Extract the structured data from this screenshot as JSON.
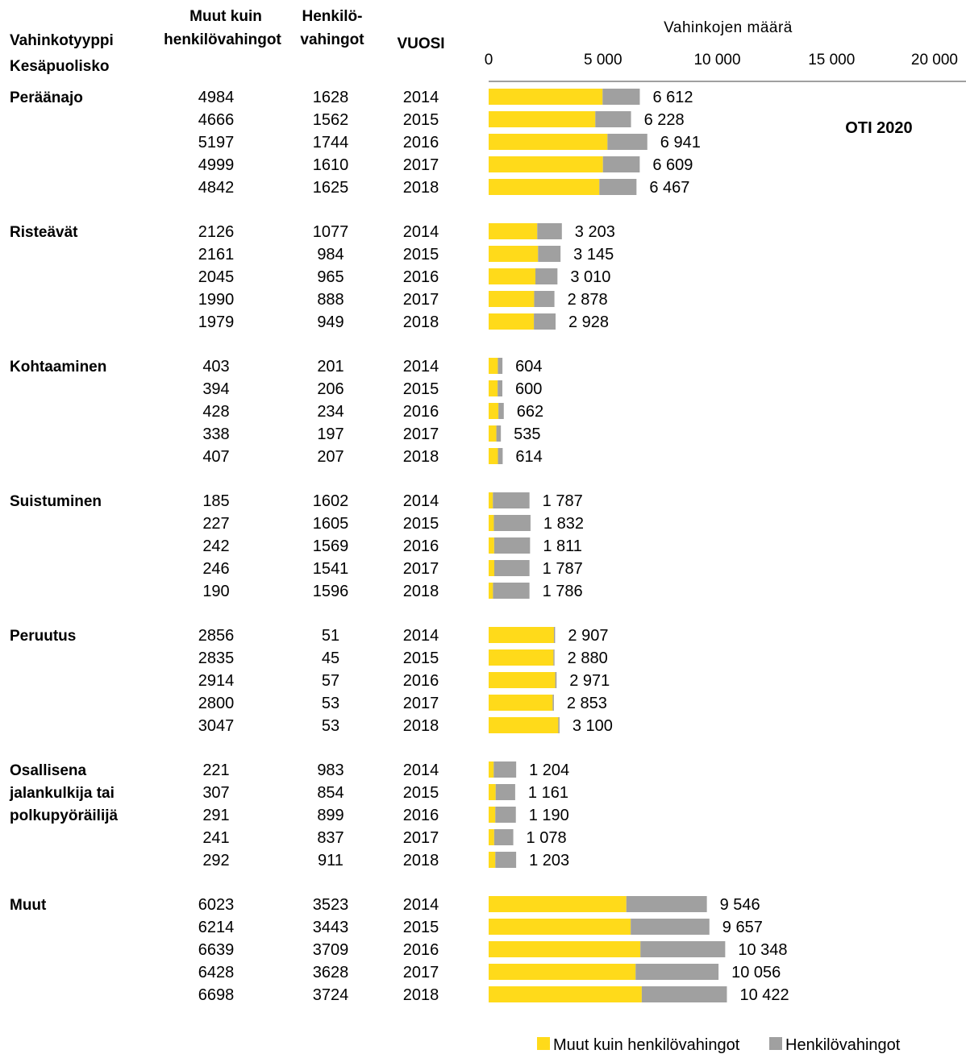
{
  "chart_data": {
    "type": "bar",
    "stacked": true,
    "orientation": "horizontal",
    "badge": "OTI 2020",
    "headers": {
      "type_line1": "Vahinkotyyppi",
      "type_line2": "Kesäpuolisko",
      "col1_line1": "Muut kuin",
      "col1_line2": "henkilövahingot",
      "col2_line1": "Henkilö-",
      "col2_line2": "vahingot",
      "year": "VUOSI"
    },
    "xlabel": "Vahinkojen määrä",
    "xlim": [
      0,
      20000
    ],
    "xticks": [
      {
        "value": 0,
        "label": "0"
      },
      {
        "value": 5000,
        "label": "5 000"
      },
      {
        "value": 10000,
        "label": "10 000"
      },
      {
        "value": 15000,
        "label": "15 000"
      },
      {
        "value": 20000,
        "label": "20 000"
      }
    ],
    "series": [
      {
        "name": "Muut kuin henkilövahingot",
        "color": "#FFDA1A"
      },
      {
        "name": "Henkilövahingot",
        "color": "#A0A0A0"
      }
    ],
    "groups": [
      {
        "name": [
          "Peräänajo"
        ],
        "rows": [
          {
            "year": "2014",
            "muut": 4984,
            "henk": 1628,
            "total": "6 612"
          },
          {
            "year": "2015",
            "muut": 4666,
            "henk": 1562,
            "total": "6 228"
          },
          {
            "year": "2016",
            "muut": 5197,
            "henk": 1744,
            "total": "6 941"
          },
          {
            "year": "2017",
            "muut": 4999,
            "henk": 1610,
            "total": "6 609"
          },
          {
            "year": "2018",
            "muut": 4842,
            "henk": 1625,
            "total": "6 467"
          }
        ]
      },
      {
        "name": [
          "Risteävät"
        ],
        "rows": [
          {
            "year": "2014",
            "muut": 2126,
            "henk": 1077,
            "total": "3 203"
          },
          {
            "year": "2015",
            "muut": 2161,
            "henk": 984,
            "total": "3 145"
          },
          {
            "year": "2016",
            "muut": 2045,
            "henk": 965,
            "total": "3 010"
          },
          {
            "year": "2017",
            "muut": 1990,
            "henk": 888,
            "total": "2 878"
          },
          {
            "year": "2018",
            "muut": 1979,
            "henk": 949,
            "total": "2 928"
          }
        ]
      },
      {
        "name": [
          "Kohtaaminen"
        ],
        "rows": [
          {
            "year": "2014",
            "muut": 403,
            "henk": 201,
            "total": "604"
          },
          {
            "year": "2015",
            "muut": 394,
            "henk": 206,
            "total": "600"
          },
          {
            "year": "2016",
            "muut": 428,
            "henk": 234,
            "total": "662"
          },
          {
            "year": "2017",
            "muut": 338,
            "henk": 197,
            "total": "535"
          },
          {
            "year": "2018",
            "muut": 407,
            "henk": 207,
            "total": "614"
          }
        ]
      },
      {
        "name": [
          "Suistuminen"
        ],
        "rows": [
          {
            "year": "2014",
            "muut": 185,
            "henk": 1602,
            "total": "1 787"
          },
          {
            "year": "2015",
            "muut": 227,
            "henk": 1605,
            "total": "1 832"
          },
          {
            "year": "2016",
            "muut": 242,
            "henk": 1569,
            "total": "1 811"
          },
          {
            "year": "2017",
            "muut": 246,
            "henk": 1541,
            "total": "1 787"
          },
          {
            "year": "2018",
            "muut": 190,
            "henk": 1596,
            "total": "1 786"
          }
        ]
      },
      {
        "name": [
          "Peruutus"
        ],
        "rows": [
          {
            "year": "2014",
            "muut": 2856,
            "henk": 51,
            "total": "2 907"
          },
          {
            "year": "2015",
            "muut": 2835,
            "henk": 45,
            "total": "2 880"
          },
          {
            "year": "2016",
            "muut": 2914,
            "henk": 57,
            "total": "2 971"
          },
          {
            "year": "2017",
            "muut": 2800,
            "henk": 53,
            "total": "2 853"
          },
          {
            "year": "2018",
            "muut": 3047,
            "henk": 53,
            "total": "3 100"
          }
        ]
      },
      {
        "name": [
          "Osallisena",
          "jalankulkija tai",
          "polkupyöräilijä"
        ],
        "rows": [
          {
            "year": "2014",
            "muut": 221,
            "henk": 983,
            "total": "1 204"
          },
          {
            "year": "2015",
            "muut": 307,
            "henk": 854,
            "total": "1 161"
          },
          {
            "year": "2016",
            "muut": 291,
            "henk": 899,
            "total": "1 190"
          },
          {
            "year": "2017",
            "muut": 241,
            "henk": 837,
            "total": "1 078"
          },
          {
            "year": "2018",
            "muut": 292,
            "henk": 911,
            "total": "1 203"
          }
        ]
      },
      {
        "name": [
          "Muut"
        ],
        "rows": [
          {
            "year": "2014",
            "muut": 6023,
            "henk": 3523,
            "total": "9 546"
          },
          {
            "year": "2015",
            "muut": 6214,
            "henk": 3443,
            "total": "9 657"
          },
          {
            "year": "2016",
            "muut": 6639,
            "henk": 3709,
            "total": "10 348"
          },
          {
            "year": "2017",
            "muut": 6428,
            "henk": 3628,
            "total": "10 056"
          },
          {
            "year": "2018",
            "muut": 6698,
            "henk": 3724,
            "total": "10 422"
          }
        ]
      }
    ]
  }
}
